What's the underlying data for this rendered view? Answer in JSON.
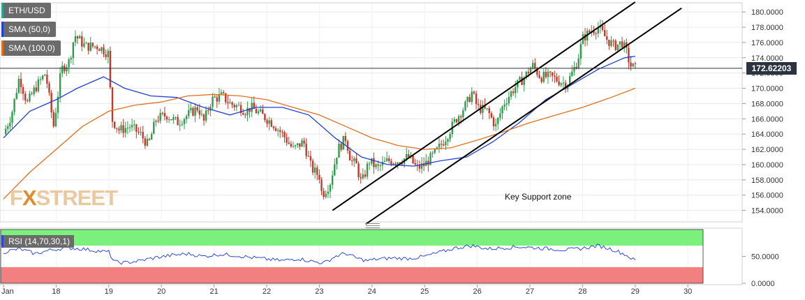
{
  "legends": [
    {
      "label": "ETH/USD",
      "color": "#26a69a"
    },
    {
      "label": "SMA (50,0)",
      "color": "#1f3fd6"
    },
    {
      "label": "SMA (100,0)",
      "color": "#e0701e"
    }
  ],
  "rsi_label": "RSI (14,70,30,1)",
  "watermark": {
    "prefix": "F",
    "x": "X",
    "rest": "STREET"
  },
  "annotation": "Key Support zone",
  "last_price_label": "172.62203",
  "colors": {
    "up": "#2e9c4c",
    "down": "#c0392b",
    "sma50": "#1f3fd6",
    "sma100": "#e0701e",
    "rsi_line": "#2b4bd6",
    "rsi_overbought": "#7cf07c",
    "rsi_oversold": "#f28080",
    "grid": "#e8e8e8",
    "axis_text": "#333333",
    "price_line": "#2b3340",
    "channel": "#000000"
  },
  "chart_data": {
    "type": "candlestick",
    "symbol": "ETH/USD",
    "x_ticks": [
      "Jan",
      "18",
      "19",
      "20",
      "21",
      "22",
      "23",
      "24",
      "25",
      "26",
      "27",
      "28",
      "29",
      "30"
    ],
    "y_ticks": [
      "180.0000",
      "178.0000",
      "176.0000",
      "174.0000",
      "172.0000",
      "170.0000",
      "168.0000",
      "166.0000",
      "164.0000",
      "162.0000",
      "160.0000",
      "158.0000",
      "156.0000",
      "154.0000"
    ],
    "ylim": [
      152.5,
      181.2
    ],
    "last_price": 172.62203,
    "close_path": [
      [
        0.0,
        164.0
      ],
      [
        0.15,
        166.5
      ],
      [
        0.3,
        171.5
      ],
      [
        0.45,
        168.0
      ],
      [
        0.6,
        170.0
      ],
      [
        0.8,
        172.0
      ],
      [
        0.95,
        165.0
      ],
      [
        1.1,
        172.5
      ],
      [
        1.25,
        173.5
      ],
      [
        1.35,
        177.0
      ],
      [
        1.55,
        175.5
      ],
      [
        1.8,
        175.5
      ],
      [
        2.0,
        174.5
      ],
      [
        2.05,
        166.0
      ],
      [
        2.2,
        164.5
      ],
      [
        2.4,
        165.0
      ],
      [
        2.6,
        164.0
      ],
      [
        2.75,
        162.5
      ],
      [
        2.9,
        166.0
      ],
      [
        3.1,
        166.5
      ],
      [
        3.3,
        165.5
      ],
      [
        3.5,
        166.5
      ],
      [
        3.7,
        167.5
      ],
      [
        3.8,
        165.5
      ],
      [
        3.95,
        168.5
      ],
      [
        4.15,
        169.0
      ],
      [
        4.3,
        168.0
      ],
      [
        4.5,
        167.5
      ],
      [
        4.6,
        167.0
      ],
      [
        4.7,
        167.5
      ],
      [
        4.9,
        166.5
      ],
      [
        5.1,
        165.5
      ],
      [
        5.3,
        164.0
      ],
      [
        5.5,
        162.0
      ],
      [
        5.7,
        163.0
      ],
      [
        5.85,
        159.5
      ],
      [
        6.0,
        158.5
      ],
      [
        6.05,
        156.0
      ],
      [
        6.2,
        157.5
      ],
      [
        6.35,
        162.0
      ],
      [
        6.5,
        163.5
      ],
      [
        6.6,
        160.5
      ],
      [
        6.7,
        160.0
      ],
      [
        6.8,
        157.5
      ],
      [
        6.95,
        160.5
      ],
      [
        7.1,
        159.5
      ],
      [
        7.3,
        160.5
      ],
      [
        7.5,
        160.5
      ],
      [
        7.7,
        161.0
      ],
      [
        7.85,
        159.5
      ],
      [
        8.0,
        160.0
      ],
      [
        8.2,
        161.5
      ],
      [
        8.4,
        163.5
      ],
      [
        8.6,
        166.0
      ],
      [
        8.8,
        168.0
      ],
      [
        8.9,
        169.5
      ],
      [
        9.0,
        167.5
      ],
      [
        9.2,
        167.0
      ],
      [
        9.35,
        165.0
      ],
      [
        9.5,
        168.0
      ],
      [
        9.7,
        170.0
      ],
      [
        9.9,
        171.5
      ],
      [
        10.05,
        173.0
      ],
      [
        10.2,
        171.5
      ],
      [
        10.4,
        171.5
      ],
      [
        10.55,
        171.0
      ],
      [
        10.7,
        170.5
      ],
      [
        10.9,
        173.5
      ],
      [
        11.0,
        176.5
      ],
      [
        11.15,
        177.5
      ],
      [
        11.3,
        178.0
      ],
      [
        11.45,
        176.5
      ],
      [
        11.6,
        175.5
      ],
      [
        11.75,
        176.0
      ],
      [
        11.85,
        174.5
      ],
      [
        11.9,
        173.0
      ],
      [
        12.0,
        172.62
      ]
    ],
    "series": [
      {
        "name": "SMA (50,0)",
        "values": [
          [
            0.0,
            163.5
          ],
          [
            0.5,
            167.0
          ],
          [
            1.0,
            168.5
          ],
          [
            1.4,
            170.0
          ],
          [
            1.9,
            171.5
          ],
          [
            2.3,
            170.0
          ],
          [
            2.8,
            169.0
          ],
          [
            3.3,
            168.8
          ],
          [
            3.8,
            167.5
          ],
          [
            4.3,
            166.5
          ],
          [
            4.8,
            167.5
          ],
          [
            5.3,
            167.5
          ],
          [
            5.8,
            166.5
          ],
          [
            6.3,
            163.5
          ],
          [
            6.8,
            161.0
          ],
          [
            7.3,
            160.0
          ],
          [
            7.8,
            159.8
          ],
          [
            8.3,
            160.5
          ],
          [
            8.8,
            161.0
          ],
          [
            9.3,
            163.0
          ],
          [
            9.8,
            165.5
          ],
          [
            10.3,
            168.5
          ],
          [
            10.8,
            170.5
          ],
          [
            11.3,
            172.5
          ],
          [
            11.8,
            174.0
          ],
          [
            12.0,
            174.2
          ]
        ]
      },
      {
        "name": "SMA (100,0)",
        "values": [
          [
            0.0,
            155.5
          ],
          [
            0.5,
            159.0
          ],
          [
            1.0,
            162.0
          ],
          [
            1.5,
            165.0
          ],
          [
            2.0,
            167.0
          ],
          [
            2.5,
            167.8
          ],
          [
            3.0,
            168.2
          ],
          [
            3.5,
            169.0
          ],
          [
            4.0,
            169.2
          ],
          [
            4.5,
            169.0
          ],
          [
            5.0,
            168.5
          ],
          [
            5.5,
            167.5
          ],
          [
            6.0,
            166.5
          ],
          [
            6.5,
            165.0
          ],
          [
            7.0,
            163.5
          ],
          [
            7.5,
            162.5
          ],
          [
            8.0,
            162.0
          ],
          [
            8.5,
            162.2
          ],
          [
            9.0,
            163.2
          ],
          [
            9.5,
            164.3
          ],
          [
            10.0,
            165.5
          ],
          [
            10.5,
            166.5
          ],
          [
            11.0,
            167.5
          ],
          [
            11.5,
            168.7
          ],
          [
            12.0,
            170.0
          ]
        ]
      }
    ],
    "channel_lines": [
      {
        "from": [
          6.25,
          154.0
        ],
        "to": [
          12.0,
          181.3
        ]
      },
      {
        "from": [
          6.88,
          152.2
        ],
        "to": [
          12.88,
          180.5
        ]
      }
    ],
    "rsi": {
      "label": "RSI (14,70,30,1)",
      "y_ticks": [
        "50.0000",
        "0.0000"
      ],
      "ylim": [
        0,
        100
      ],
      "overbought": 70,
      "oversold": 30,
      "values": [
        [
          0.0,
          58
        ],
        [
          0.3,
          64
        ],
        [
          0.6,
          55
        ],
        [
          0.9,
          62
        ],
        [
          1.2,
          66
        ],
        [
          1.5,
          64
        ],
        [
          1.8,
          60
        ],
        [
          2.0,
          58
        ],
        [
          2.1,
          40
        ],
        [
          2.3,
          38
        ],
        [
          2.6,
          42
        ],
        [
          2.9,
          48
        ],
        [
          3.2,
          52
        ],
        [
          3.5,
          55
        ],
        [
          3.8,
          50
        ],
        [
          4.1,
          54
        ],
        [
          4.4,
          52
        ],
        [
          4.7,
          48
        ],
        [
          5.0,
          45
        ],
        [
          5.3,
          42
        ],
        [
          5.6,
          46
        ],
        [
          5.9,
          40
        ],
        [
          6.1,
          38
        ],
        [
          6.3,
          50
        ],
        [
          6.5,
          56
        ],
        [
          6.7,
          47
        ],
        [
          6.9,
          42
        ],
        [
          7.1,
          45
        ],
        [
          7.4,
          47
        ],
        [
          7.7,
          46
        ],
        [
          8.0,
          50
        ],
        [
          8.3,
          58
        ],
        [
          8.6,
          66
        ],
        [
          8.9,
          70
        ],
        [
          9.2,
          64
        ],
        [
          9.5,
          66
        ],
        [
          9.8,
          68
        ],
        [
          10.1,
          66
        ],
        [
          10.4,
          64
        ],
        [
          10.7,
          62
        ],
        [
          11.0,
          65
        ],
        [
          11.3,
          70
        ],
        [
          11.6,
          62
        ],
        [
          11.8,
          54
        ],
        [
          12.0,
          42
        ]
      ]
    }
  }
}
